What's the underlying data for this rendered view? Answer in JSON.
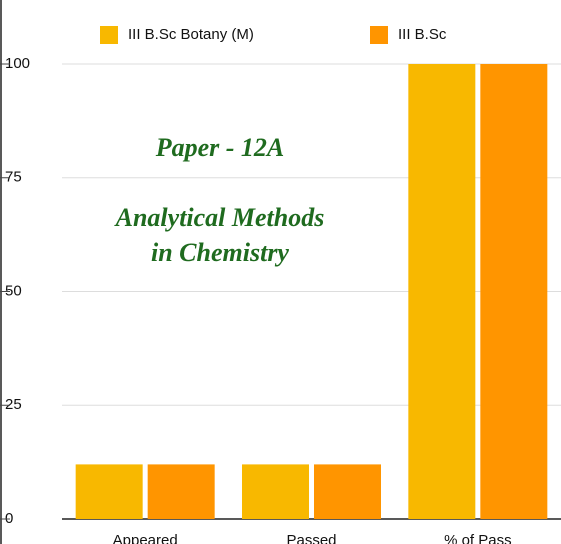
{
  "chart_data": {
    "type": "bar",
    "annotations": [
      "Paper - 12A",
      "Analytical Methods",
      "in Chemistry"
    ],
    "categories": [
      "Appeared",
      "Passed",
      "% of Pass"
    ],
    "series": [
      {
        "name": "III B.Sc Botany (M)",
        "color": "#f8b800",
        "values": [
          12,
          12,
          100
        ]
      },
      {
        "name": "III B.Sc",
        "color": "#ff9500",
        "values": [
          12,
          12,
          100
        ]
      }
    ],
    "ylim": [
      0,
      100
    ],
    "yticks": [
      0,
      25,
      50,
      75,
      100
    ],
    "grid": true,
    "legend": "top"
  }
}
